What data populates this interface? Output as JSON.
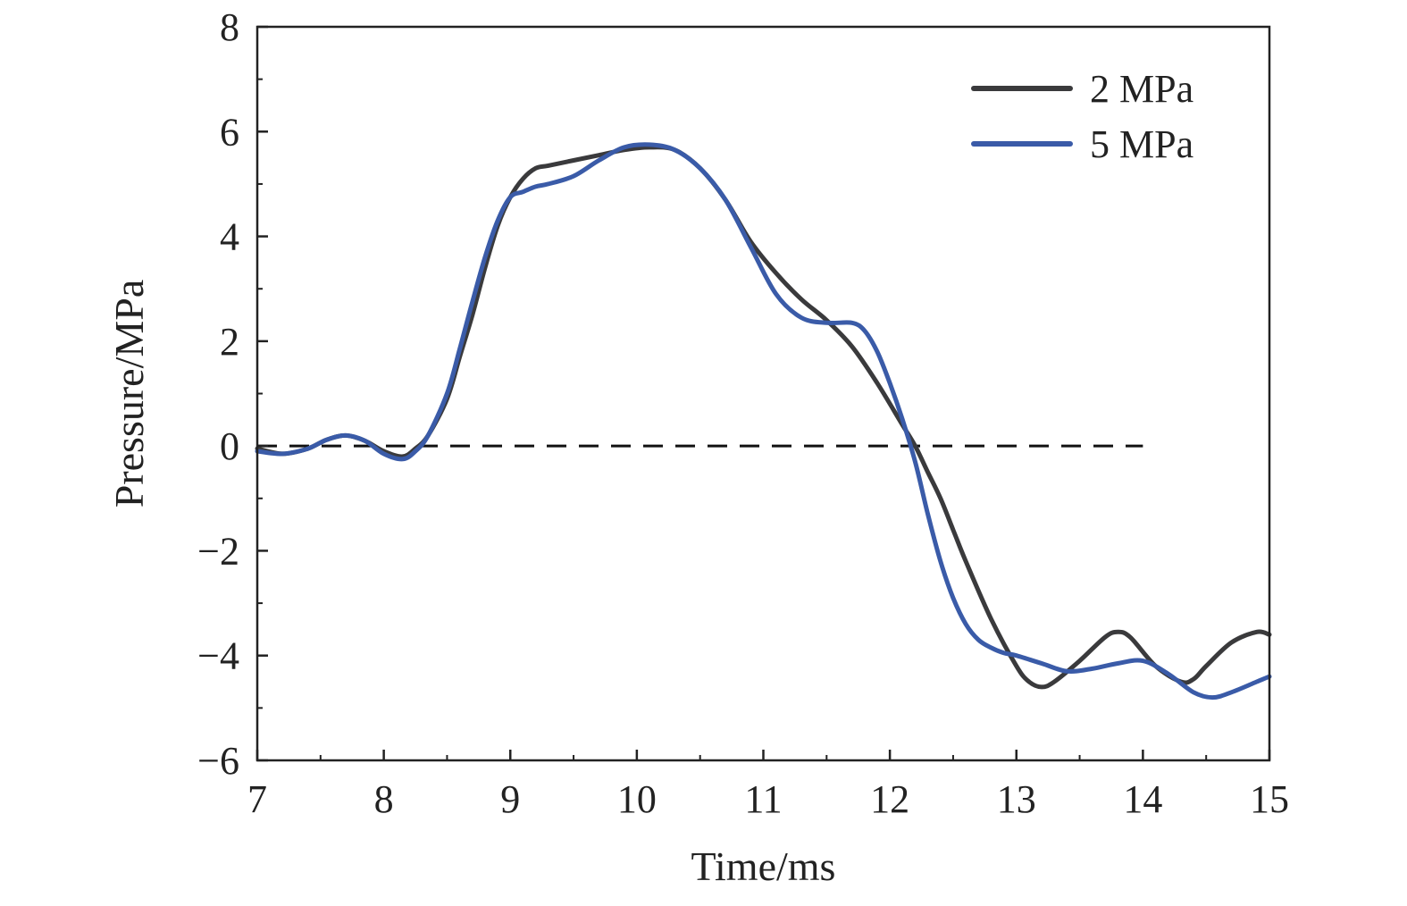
{
  "chart_data": {
    "type": "line",
    "xlabel": "Time/ms",
    "ylabel": "Pressure/MPa",
    "xlim": [
      7,
      15
    ],
    "ylim": [
      -6,
      8
    ],
    "x_ticks": [
      7,
      8,
      9,
      10,
      11,
      12,
      13,
      14,
      15
    ],
    "x_tick_labels": [
      "7",
      "8",
      "9",
      "10",
      "11",
      "12",
      "13",
      "14",
      "15"
    ],
    "y_ticks": [
      -6,
      -4,
      -2,
      0,
      2,
      4,
      6,
      8
    ],
    "y_tick_labels": [
      "−6",
      "−4",
      "−2",
      "0",
      "2",
      "4",
      "6",
      "8"
    ],
    "grid": false,
    "legend_position": "top-right",
    "reference_line": {
      "y": 0,
      "x_from": 7,
      "x_to": 14,
      "style": "dashed",
      "color": "#111111"
    },
    "series": [
      {
        "name": "2 MPa",
        "color": "#3a3a3c",
        "x": [
          7.0,
          7.2,
          7.4,
          7.55,
          7.7,
          7.85,
          8.0,
          8.15,
          8.25,
          8.35,
          8.5,
          8.6,
          8.7,
          8.8,
          8.9,
          9.0,
          9.1,
          9.2,
          9.3,
          9.5,
          9.7,
          9.9,
          10.1,
          10.3,
          10.5,
          10.7,
          10.9,
          11.1,
          11.3,
          11.5,
          11.7,
          11.9,
          12.1,
          12.2,
          12.3,
          12.4,
          12.5,
          12.6,
          12.8,
          13.0,
          13.1,
          13.2,
          13.3,
          13.5,
          13.7,
          13.8,
          13.9,
          14.1,
          14.3,
          14.4,
          14.5,
          14.7,
          14.9,
          15.0
        ],
        "values": [
          -0.05,
          -0.15,
          -0.05,
          0.12,
          0.2,
          0.1,
          -0.1,
          -0.2,
          -0.05,
          0.2,
          0.9,
          1.7,
          2.5,
          3.4,
          4.2,
          4.75,
          5.1,
          5.3,
          5.35,
          5.45,
          5.55,
          5.65,
          5.7,
          5.65,
          5.3,
          4.7,
          3.9,
          3.3,
          2.8,
          2.4,
          1.9,
          1.2,
          0.4,
          0.0,
          -0.5,
          -1.0,
          -1.6,
          -2.2,
          -3.3,
          -4.2,
          -4.5,
          -4.6,
          -4.5,
          -4.1,
          -3.65,
          -3.55,
          -3.65,
          -4.2,
          -4.5,
          -4.45,
          -4.2,
          -3.75,
          -3.55,
          -3.6
        ]
      },
      {
        "name": "5 MPa",
        "color": "#3a5ba8",
        "x": [
          7.0,
          7.2,
          7.4,
          7.55,
          7.7,
          7.85,
          8.0,
          8.15,
          8.25,
          8.35,
          8.5,
          8.6,
          8.7,
          8.8,
          8.9,
          9.0,
          9.1,
          9.2,
          9.3,
          9.5,
          9.7,
          9.9,
          10.1,
          10.3,
          10.5,
          10.7,
          10.9,
          11.1,
          11.3,
          11.5,
          11.7,
          11.8,
          11.9,
          12.0,
          12.1,
          12.2,
          12.3,
          12.4,
          12.5,
          12.6,
          12.7,
          12.8,
          12.9,
          13.0,
          13.2,
          13.4,
          13.6,
          13.8,
          14.0,
          14.2,
          14.4,
          14.55,
          14.7,
          14.9,
          15.0
        ],
        "values": [
          -0.1,
          -0.15,
          -0.05,
          0.12,
          0.2,
          0.1,
          -0.15,
          -0.25,
          -0.1,
          0.2,
          1.0,
          1.85,
          2.75,
          3.6,
          4.3,
          4.75,
          4.85,
          4.95,
          5.0,
          5.15,
          5.45,
          5.7,
          5.75,
          5.65,
          5.3,
          4.7,
          3.8,
          2.9,
          2.45,
          2.35,
          2.35,
          2.2,
          1.8,
          1.2,
          0.5,
          -0.3,
          -1.3,
          -2.2,
          -2.9,
          -3.4,
          -3.7,
          -3.85,
          -3.95,
          -4.0,
          -4.15,
          -4.3,
          -4.25,
          -4.15,
          -4.1,
          -4.35,
          -4.7,
          -4.8,
          -4.7,
          -4.5,
          -4.4
        ]
      }
    ]
  }
}
